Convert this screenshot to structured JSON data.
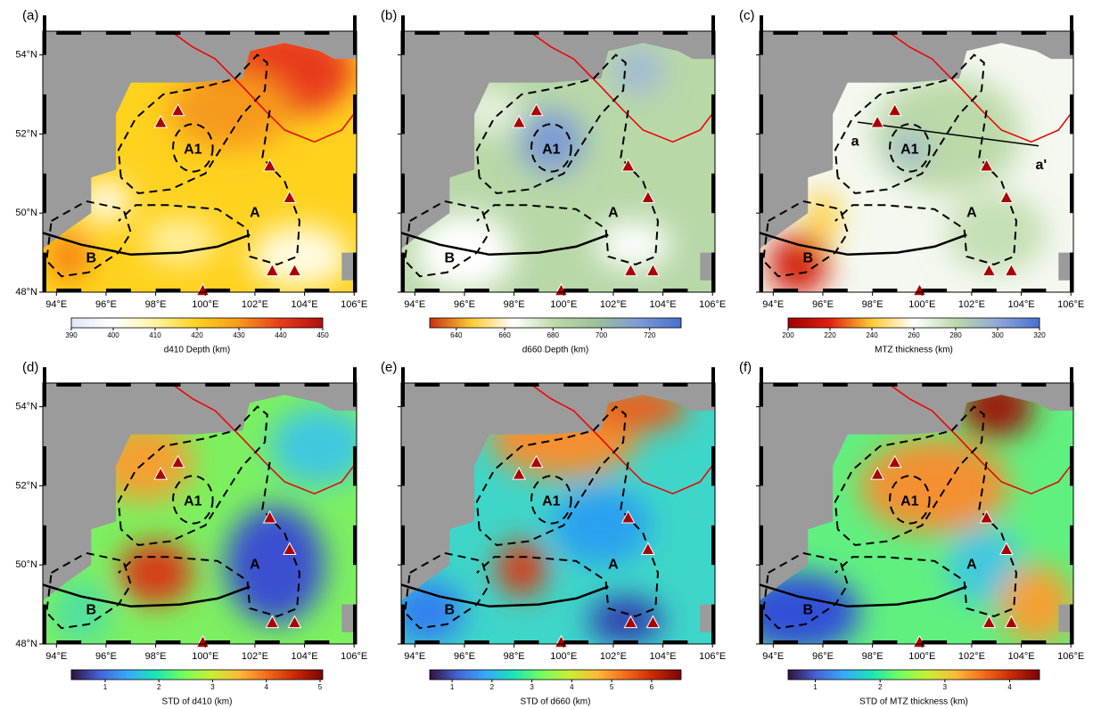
{
  "map": {
    "lonlim": [
      93.45,
      106.1
    ],
    "latlim": [
      48,
      54.6
    ],
    "lonticks": [
      {
        "value": 94,
        "label": "94°E"
      },
      {
        "value": 96,
        "label": "96°E"
      },
      {
        "value": 98,
        "label": "98°E"
      },
      {
        "value": 100,
        "label": "100°E"
      },
      {
        "value": 102,
        "label": "102°E"
      },
      {
        "value": 104,
        "label": "104°E"
      },
      {
        "value": 106,
        "label": "106°E"
      }
    ],
    "latticks": [
      {
        "value": 48,
        "label": "48°N"
      },
      {
        "value": 50,
        "label": "50°N"
      },
      {
        "value": 52,
        "label": "52°N"
      },
      {
        "value": 54,
        "label": "54°N"
      }
    ]
  },
  "panels": [
    {
      "label": "(a)",
      "annotations": [
        "A1",
        "A",
        "B"
      ],
      "colorbar": {
        "label": "d410 Depth (km)",
        "range": [
          390,
          450
        ],
        "ticks": [
          390,
          400,
          410,
          420,
          430,
          440,
          450
        ],
        "colormap": [
          "#dfe6f5",
          "#ffffff",
          "#fff3a0",
          "#ffd21e",
          "#f79a1a",
          "#e83a1a",
          "#b01010"
        ]
      }
    },
    {
      "label": "(b)",
      "annotations": [
        "A1",
        "A",
        "B"
      ],
      "colorbar": {
        "label": "d660 Depth (km)",
        "range": [
          629,
          733
        ],
        "ticks": [
          640,
          660,
          680,
          700,
          720
        ],
        "colormap": [
          "#c83010",
          "#ffcc33",
          "#ffffff",
          "#bcd9a8",
          "#9cc09a",
          "#7d9ad6",
          "#4a6fd0"
        ]
      }
    },
    {
      "label": "(c)",
      "annotations": [
        "A1",
        "A",
        "B",
        "a",
        "a'"
      ],
      "colorbar": {
        "label": "MTZ thickness (km)",
        "range": [
          200,
          320
        ],
        "ticks": [
          200,
          220,
          240,
          260,
          280,
          300,
          320
        ],
        "colormap": [
          "#a00000",
          "#e02010",
          "#ffcc33",
          "#ffffff",
          "#bcd9a8",
          "#8fa8d8",
          "#4a6fd0"
        ]
      }
    },
    {
      "label": "(d)",
      "annotations": [
        "A1",
        "A",
        "B"
      ],
      "colorbar": {
        "label": "STD of d410 (km)",
        "range": [
          0.37,
          5.05
        ],
        "ticks": [
          1,
          2,
          3,
          4,
          5
        ],
        "colormap": [
          "#30123b",
          "#4662d7",
          "#36aaf9",
          "#1ae4b6",
          "#72fe5e",
          "#c8ef34",
          "#faba39",
          "#f66b19",
          "#ca2a04",
          "#7a0403"
        ]
      }
    },
    {
      "label": "(e)",
      "annotations": [
        "A1",
        "A",
        "B"
      ],
      "colorbar": {
        "label": "STD of d660 (km)",
        "range": [
          0.44,
          6.74
        ],
        "ticks": [
          1,
          2,
          3,
          4,
          5,
          6
        ],
        "colormap": [
          "#30123b",
          "#4662d7",
          "#36aaf9",
          "#1ae4b6",
          "#72fe5e",
          "#c8ef34",
          "#faba39",
          "#f66b19",
          "#ca2a04",
          "#7a0403"
        ]
      }
    },
    {
      "label": "(f)",
      "annotations": [
        "A1",
        "A",
        "B"
      ],
      "colorbar": {
        "label": "STD of MTZ thickness (km)",
        "range": [
          0.58,
          4.46
        ],
        "ticks": [
          1,
          2,
          3,
          4
        ],
        "colormap": [
          "#30123b",
          "#4662d7",
          "#36aaf9",
          "#1ae4b6",
          "#72fe5e",
          "#c8ef34",
          "#faba39",
          "#f66b19",
          "#ca2a04",
          "#7a0403"
        ]
      }
    }
  ]
}
